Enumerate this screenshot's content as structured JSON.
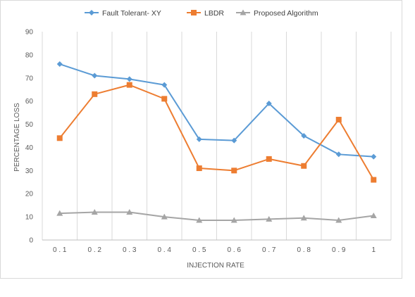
{
  "chart_data": {
    "type": "line",
    "categories": [
      "0 . 1",
      "0 . 2",
      "0 . 3",
      "0 . 4",
      "0 . 5",
      "0 . 6",
      "0 . 7",
      "0 . 8",
      "0 . 9",
      "1"
    ],
    "series": [
      {
        "name": "Fault Tolerant- XY",
        "color": "#5b9bd5",
        "marker": "diamond",
        "values": [
          76,
          71,
          69.5,
          67,
          43.5,
          43,
          59,
          45,
          37,
          36
        ]
      },
      {
        "name": "LBDR",
        "color": "#ed7d31",
        "marker": "square",
        "values": [
          44,
          63,
          67,
          61,
          31,
          30,
          35,
          32,
          52,
          26
        ]
      },
      {
        "name": "Proposed Algorithm",
        "color": "#a5a5a5",
        "marker": "triangle",
        "values": [
          11.5,
          12,
          12,
          10,
          8.5,
          8.5,
          9,
          9.5,
          8.5,
          10.5
        ]
      }
    ],
    "xlabel": "INJECTION RATE",
    "ylabel": "PERCENTAGE LOSS",
    "ylim": [
      0,
      90
    ],
    "yticks": [
      "0",
      "10",
      "20",
      "30",
      "40",
      "50",
      "60",
      "70",
      "80",
      "90"
    ],
    "grid": "vertical",
    "legend": "top"
  }
}
